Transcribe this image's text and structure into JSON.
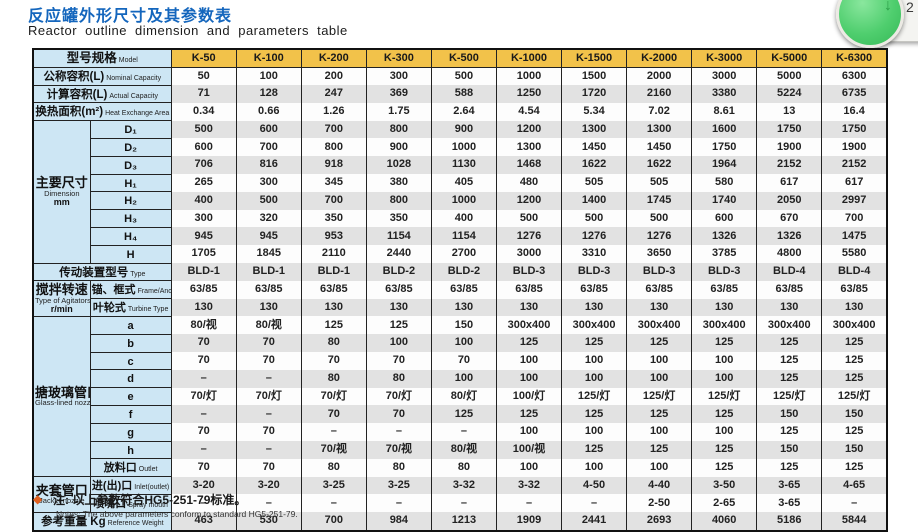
{
  "title": {
    "zh": "反应罐外形尺寸及其参数表",
    "en": "Reactor outline dimension and parameters table"
  },
  "widget": {
    "badge_count": "2",
    "arrow": "↓"
  },
  "table": {
    "header": {
      "label_zh": "型号规格",
      "label_en": "Model"
    },
    "models": [
      "K-50",
      "K-100",
      "K-200",
      "K-300",
      "K-500",
      "K-1000",
      "K-1500",
      "K-2000",
      "K-3000",
      "K-5000",
      "K-6300"
    ],
    "sections": [
      {
        "type": "simple",
        "label_zh": "公称容积(L)",
        "label_en": "Nominal Capacity",
        "values": [
          "50",
          "100",
          "200",
          "300",
          "500",
          "1000",
          "1500",
          "2000",
          "3000",
          "5000",
          "6300"
        ]
      },
      {
        "type": "simple",
        "label_zh": "计算容积(L)",
        "label_en": "Actual Capacity",
        "values": [
          "71",
          "128",
          "247",
          "369",
          "588",
          "1250",
          "1720",
          "2160",
          "3380",
          "5224",
          "6735"
        ]
      },
      {
        "type": "simple",
        "label_zh": "换热面积(m²)",
        "label_en": "Heat Exchange Area",
        "values": [
          "0.34",
          "0.66",
          "1.26",
          "1.75",
          "2.64",
          "4.54",
          "5.34",
          "7.02",
          "8.61",
          "13",
          "16.4"
        ]
      },
      {
        "type": "group",
        "label_zh": "主要尺寸",
        "label_en": "Dimension",
        "label_extra": "mm",
        "rows": [
          {
            "sub_zh": "D₁",
            "values": [
              "500",
              "600",
              "700",
              "800",
              "900",
              "1200",
              "1300",
              "1300",
              "1600",
              "1750",
              "1750"
            ]
          },
          {
            "sub_zh": "D₂",
            "values": [
              "600",
              "700",
              "800",
              "900",
              "1000",
              "1300",
              "1450",
              "1450",
              "1750",
              "1900",
              "1900"
            ]
          },
          {
            "sub_zh": "D₃",
            "values": [
              "706",
              "816",
              "918",
              "1028",
              "1130",
              "1468",
              "1622",
              "1622",
              "1964",
              "2152",
              "2152"
            ]
          },
          {
            "sub_zh": "H₁",
            "values": [
              "265",
              "300",
              "345",
              "380",
              "405",
              "480",
              "505",
              "505",
              "580",
              "617",
              "617"
            ]
          },
          {
            "sub_zh": "H₂",
            "values": [
              "400",
              "500",
              "700",
              "800",
              "1000",
              "1200",
              "1400",
              "1745",
              "1740",
              "2050",
              "2997"
            ]
          },
          {
            "sub_zh": "H₃",
            "values": [
              "300",
              "320",
              "350",
              "350",
              "400",
              "500",
              "500",
              "500",
              "600",
              "670",
              "700"
            ]
          },
          {
            "sub_zh": "H₄",
            "values": [
              "945",
              "945",
              "953",
              "1154",
              "1154",
              "1276",
              "1276",
              "1276",
              "1326",
              "1326",
              "1475"
            ]
          },
          {
            "sub_zh": "H",
            "values": [
              "1705",
              "1845",
              "2110",
              "2440",
              "2700",
              "3000",
              "3310",
              "3650",
              "3785",
              "4800",
              "5580"
            ]
          }
        ]
      },
      {
        "type": "simple",
        "label_zh": "传动装置型号",
        "label_en": "Type",
        "values": [
          "BLD-1",
          "BLD-1",
          "BLD-1",
          "BLD-2",
          "BLD-2",
          "BLD-3",
          "BLD-3",
          "BLD-3",
          "BLD-3",
          "BLD-4",
          "BLD-4"
        ]
      },
      {
        "type": "group",
        "label_zh": "搅拌转速",
        "label_en": "Type of Agitators",
        "label_extra": "r/min",
        "rows": [
          {
            "sub_zh": "锚、框式",
            "sub_en": "Frame/Anchor Type",
            "values": [
              "63/85",
              "63/85",
              "63/85",
              "63/85",
              "63/85",
              "63/85",
              "63/85",
              "63/85",
              "63/85",
              "63/85",
              "63/85"
            ]
          },
          {
            "sub_zh": "叶轮式",
            "sub_en": "Turbine Type",
            "values": [
              "130",
              "130",
              "130",
              "130",
              "130",
              "130",
              "130",
              "130",
              "130",
              "130",
              "130"
            ]
          }
        ]
      },
      {
        "type": "group",
        "label_zh": "搪玻璃管口",
        "label_en": "Glass-lined nozzle",
        "rows": [
          {
            "sub_zh": "a",
            "values": [
              "80/视",
              "80/视",
              "125",
              "125",
              "150",
              "300x400",
              "300x400",
              "300x400",
              "300x400",
              "300x400",
              "300x400"
            ]
          },
          {
            "sub_zh": "b",
            "values": [
              "70",
              "70",
              "80",
              "100",
              "100",
              "125",
              "125",
              "125",
              "125",
              "125",
              "125"
            ]
          },
          {
            "sub_zh": "c",
            "values": [
              "70",
              "70",
              "70",
              "70",
              "70",
              "100",
              "100",
              "100",
              "100",
              "125",
              "125"
            ]
          },
          {
            "sub_zh": "d",
            "values": [
              "–",
              "–",
              "80",
              "80",
              "100",
              "100",
              "100",
              "100",
              "100",
              "125",
              "125"
            ]
          },
          {
            "sub_zh": "e",
            "values": [
              "70/灯",
              "70/灯",
              "70/灯",
              "70/灯",
              "80/灯",
              "100/灯",
              "125/灯",
              "125/灯",
              "125/灯",
              "125/灯",
              "125/灯"
            ]
          },
          {
            "sub_zh": "f",
            "values": [
              "–",
              "–",
              "70",
              "70",
              "125",
              "125",
              "125",
              "125",
              "125",
              "150",
              "150"
            ]
          },
          {
            "sub_zh": "g",
            "values": [
              "70",
              "70",
              "–",
              "–",
              "–",
              "100",
              "100",
              "100",
              "100",
              "125",
              "125"
            ]
          },
          {
            "sub_zh": "h",
            "values": [
              "–",
              "–",
              "70/视",
              "70/视",
              "80/视",
              "100/视",
              "125",
              "125",
              "125",
              "150",
              "150"
            ]
          },
          {
            "sub_zh": "放料口",
            "sub_en": "Outlet",
            "values": [
              "70",
              "70",
              "80",
              "80",
              "80",
              "100",
              "100",
              "100",
              "125",
              "125",
              "125"
            ]
          }
        ]
      },
      {
        "type": "group",
        "label_zh": "夹套管口",
        "label_en": "Jacket nozzle",
        "rows": [
          {
            "sub_zh": "进(出)口",
            "sub_en": "Inlet(outlet)",
            "values": [
              "3-20",
              "3-20",
              "3-25",
              "3-25",
              "3-32",
              "3-32",
              "4-50",
              "4-40",
              "3-50",
              "3-65",
              "4-65"
            ]
          },
          {
            "sub_zh": "喷嘴口",
            "sub_en": "Spray mouth",
            "values": [
              "–",
              "–",
              "–",
              "–",
              "–",
              "–",
              "–",
              "2-50",
              "2-65",
              "3-65",
              "–"
            ]
          }
        ]
      },
      {
        "type": "simple",
        "label_zh": "参考重量 Kg",
        "label_en": "Reference Weight",
        "values": [
          "463",
          "530",
          "700",
          "984",
          "1213",
          "1909",
          "2441",
          "2693",
          "4060",
          "5186",
          "5844"
        ]
      }
    ]
  },
  "note": {
    "bullet": "◆",
    "zh": "注: 以上参数符合HG5-251-79标准。",
    "en": "Notes: The above parameters conform to standard HG5-251-79."
  }
}
